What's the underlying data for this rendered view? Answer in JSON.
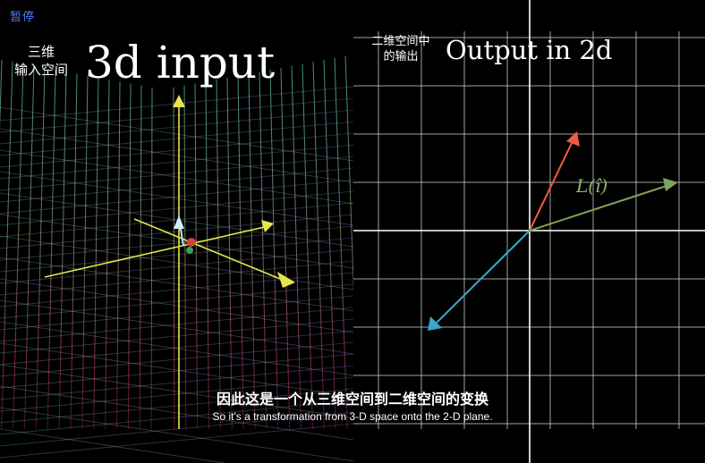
{
  "player": {
    "pause_label": "暂停"
  },
  "left_panel": {
    "title_cn_line1": "三维",
    "title_cn_line2": "输入空间",
    "title_en": "3d input"
  },
  "right_panel": {
    "title_cn_line1": "二维空间中",
    "title_cn_line2": "的输出",
    "title_en": "Output in 2d",
    "vector_label": "L(î)"
  },
  "subtitles": {
    "cn": "因此这是一个从三维空间到二维空间的变换",
    "en": "So it's a transformation from 3-D space onto the 2-D plane."
  },
  "colors": {
    "pause": "#4e7bff",
    "vector_red": "#f05a44",
    "vector_green": "#7fa35a",
    "vector_blue": "#3aa7d0",
    "axis_yellow": "#e6e64a",
    "grid_white": "#d8d8d8"
  }
}
